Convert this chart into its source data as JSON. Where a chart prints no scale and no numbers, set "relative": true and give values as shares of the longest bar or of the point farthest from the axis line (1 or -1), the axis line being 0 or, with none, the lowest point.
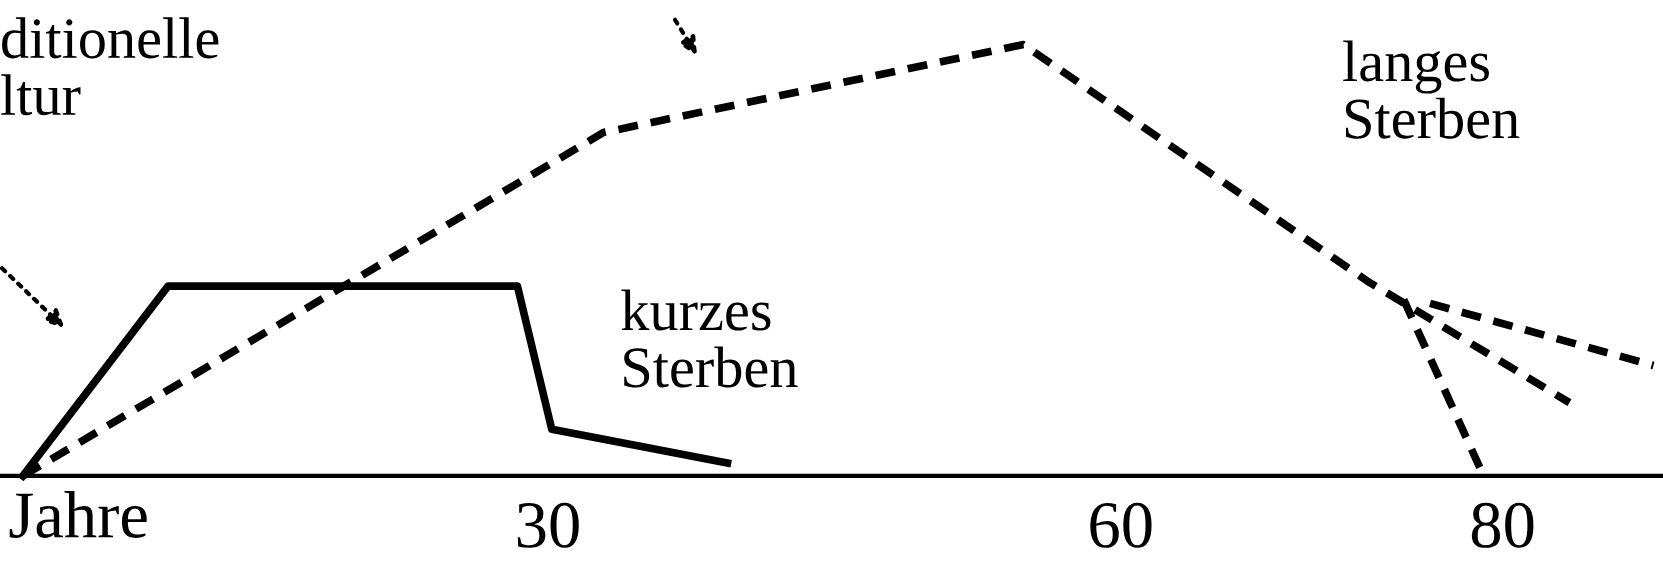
{
  "chart_data": {
    "type": "line",
    "relative": true,
    "xlabel": "Jahre",
    "xlim": [
      1.3,
      88.4
    ],
    "xticks": [
      30,
      60,
      80
    ],
    "grid": false,
    "legend": false,
    "marker": "none",
    "series": [
      {
        "color": "#000000",
        "line_style": "solid",
        "x": [
          2.5,
          10.1,
          28.4,
          30.2,
          39.4
        ],
        "values": [
          0,
          0.44,
          0.44,
          0.108,
          0.03
        ]
      },
      {
        "color": "#000000",
        "line_style": "dashed",
        "x": [
          2.5,
          32.9,
          54.9,
          72.9,
          83.5
        ],
        "values": [
          0,
          0.796,
          1,
          0.452,
          0.17
        ]
      },
      {
        "color": "#000000",
        "line_style": "dashed",
        "x": [
          76.2,
          87.9
        ],
        "values": [
          0.4,
          0.256
        ]
      },
      {
        "color": "#000000",
        "line_style": "dashed",
        "x": [
          78.8,
          74.6
        ],
        "values": [
          0.02,
          0.43
        ]
      }
    ],
    "annotations": [
      "ditionelle\nltur",
      "kurzes\nSterben",
      "langes\nSterben"
    ]
  }
}
